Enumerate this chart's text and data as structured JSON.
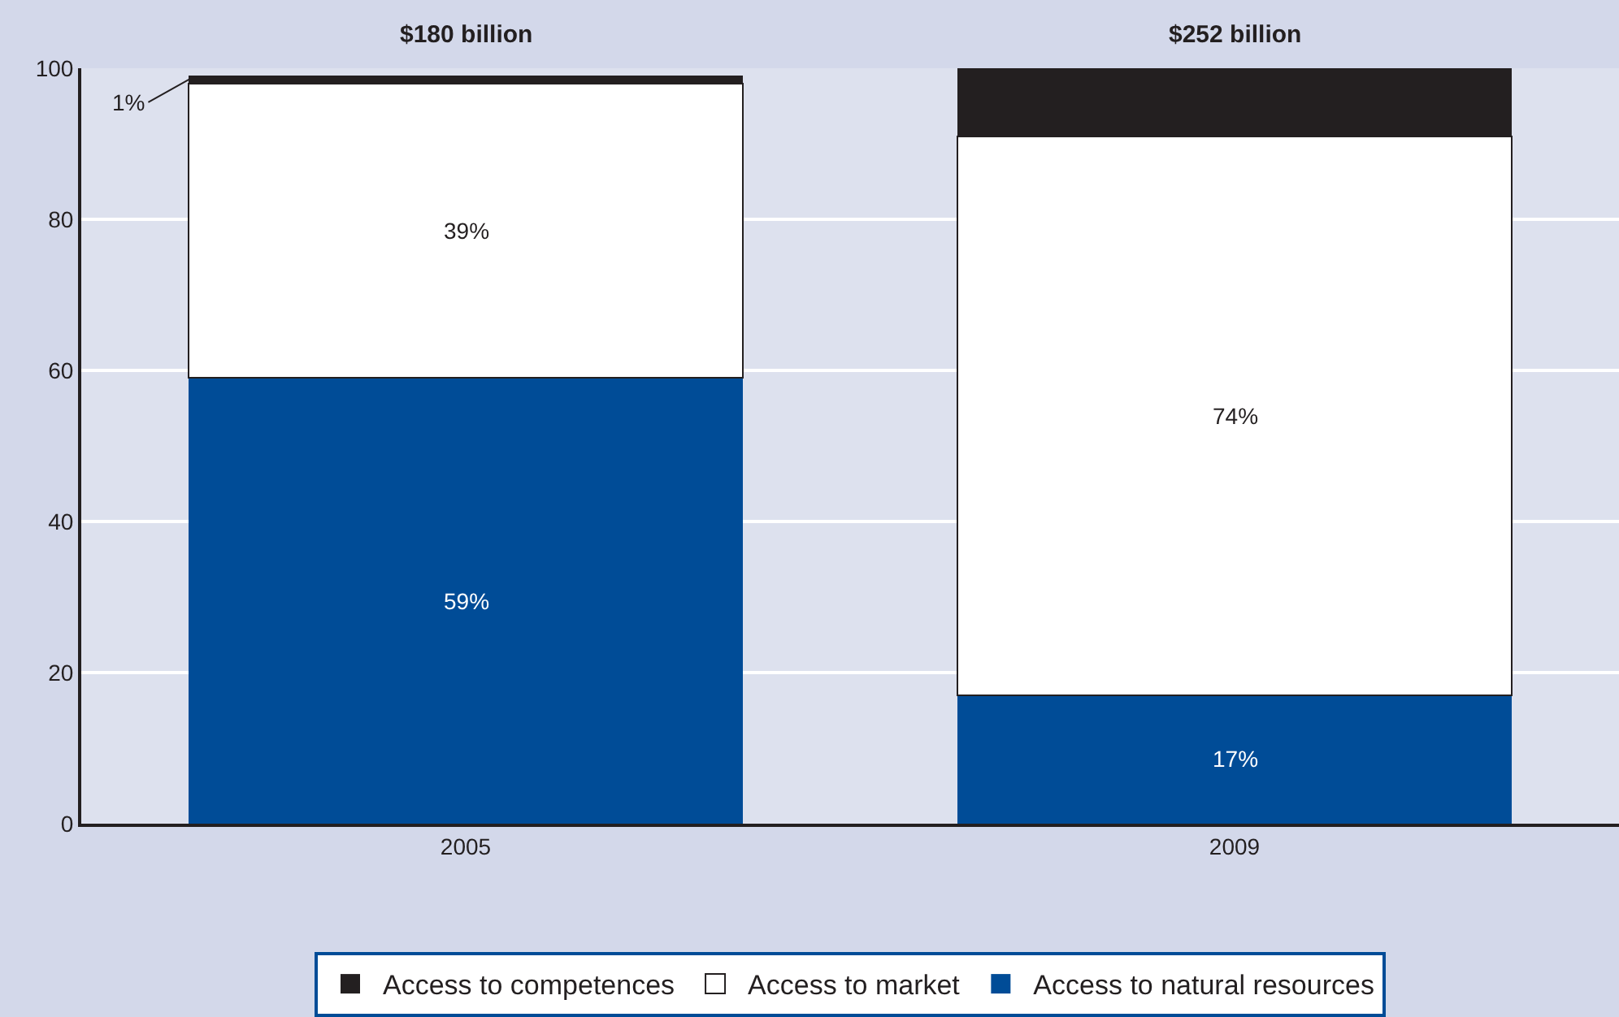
{
  "chart_data": {
    "type": "bar",
    "stacked": true,
    "categories": [
      "2005",
      "2009"
    ],
    "series": [
      {
        "name": "Access to natural resources",
        "color": "#004c97",
        "values": [
          59,
          17
        ],
        "value_labels": [
          "59%",
          "17%"
        ]
      },
      {
        "name": "Access to market",
        "color": "#ffffff",
        "values": [
          39,
          74
        ],
        "value_labels": [
          "39%",
          "74%"
        ]
      },
      {
        "name": "Access to competences",
        "color": "#231f20",
        "values": [
          1,
          9
        ],
        "value_labels": [
          "1%",
          null
        ]
      }
    ],
    "annotations": [
      "$180 billion",
      "$252 billion"
    ],
    "ylim": [
      0,
      100
    ],
    "yticks": [
      0,
      20,
      40,
      60,
      80,
      100
    ],
    "grid": "y",
    "legend": "bottom"
  }
}
